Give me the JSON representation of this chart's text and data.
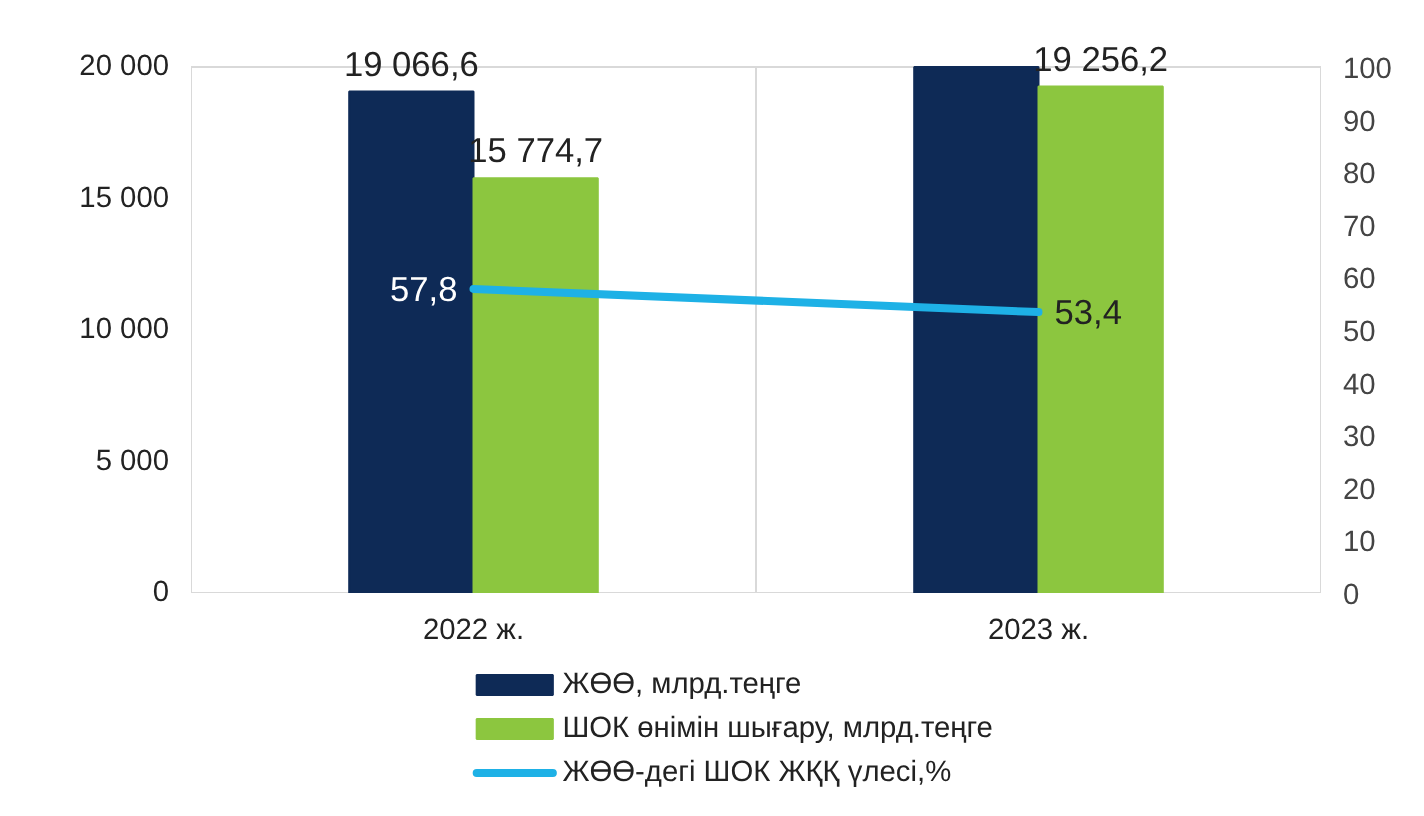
{
  "chart_data": {
    "type": "bar",
    "categories": [
      "2022 ж.",
      "2023 ж."
    ],
    "series": [
      {
        "name": "ЖӨӨ, млрд.теңге",
        "color": "#0e2a56",
        "values": [
          19066.6,
          20000
        ],
        "value_labels": [
          "19 066,6",
          null
        ]
      },
      {
        "name": "ШОК өнімін шығару, млрд.теңге",
        "color": "#8cc63f",
        "values": [
          15774.7,
          19256.2
        ],
        "value_labels": [
          "15 774,7",
          "19 256,2"
        ]
      },
      {
        "name": "ЖӨӨ-дегі ШОК ЖҚҚ үлесі,%",
        "color": "#1eb1e6",
        "type": "line",
        "axis": "y2",
        "values": [
          57.8,
          53.4
        ],
        "value_labels": [
          "57,8",
          "53,4"
        ]
      }
    ],
    "ylim": [
      0,
      20000
    ],
    "yticks": [
      {
        "value": 0,
        "label": "0"
      },
      {
        "value": 5000,
        "label": "5 000"
      },
      {
        "value": 10000,
        "label": "10 000"
      },
      {
        "value": 15000,
        "label": "15 000"
      },
      {
        "value": 20000,
        "label": "20 000"
      }
    ],
    "y2lim": [
      0,
      100
    ],
    "y2ticks": [
      0,
      10,
      20,
      30,
      40,
      50,
      60,
      70,
      80,
      90,
      100
    ],
    "grid": false,
    "legend": "bottom",
    "marker": "none",
    "line_style": "solid"
  }
}
